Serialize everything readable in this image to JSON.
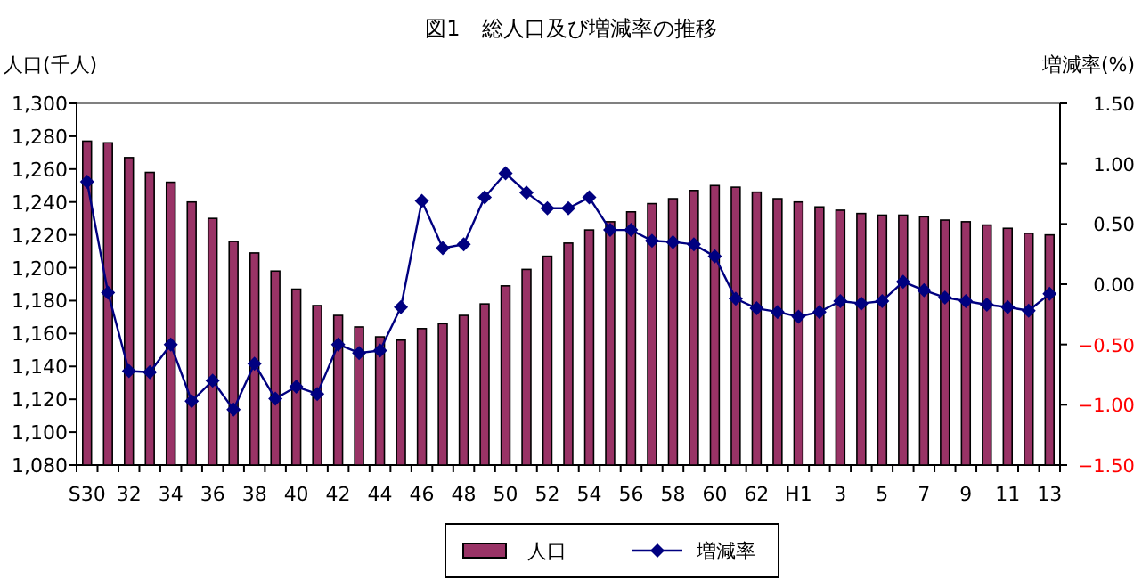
{
  "chart_data": {
    "type": "bar",
    "title": "図1　総人口及び増減率の推移",
    "ylabel": "人口(千人)",
    "y2label": "増減率(%)",
    "categories": [
      "S30",
      null,
      "32",
      null,
      "34",
      null,
      "36",
      null,
      "38",
      null,
      "40",
      null,
      "42",
      null,
      "44",
      null,
      "46",
      null,
      "48",
      null,
      "50",
      null,
      "52",
      null,
      "54",
      null,
      "56",
      null,
      "58",
      null,
      "60",
      null,
      "62",
      null,
      "H1",
      null,
      "3",
      null,
      "5",
      null,
      "7",
      null,
      "9",
      null,
      "11",
      null,
      "13"
    ],
    "series": [
      {
        "name": "人口",
        "color": "#993366",
        "values": [
          1277,
          1276,
          1267,
          1258,
          1252,
          1240,
          1230,
          1216,
          1209,
          1198,
          1187,
          1177,
          1171,
          1164,
          1158,
          1156,
          1163,
          1166,
          1171,
          1178,
          1189,
          1199,
          1207,
          1215,
          1223,
          1228,
          1234,
          1239,
          1242,
          1247,
          1250,
          1249,
          1246,
          1242,
          1240,
          1237,
          1235,
          1233,
          1232,
          1232,
          1231,
          1229,
          1228,
          1226,
          1224,
          1221,
          1220
        ]
      },
      {
        "name": "増減率",
        "type": "line",
        "axis": "y2",
        "color": "#000080",
        "values": [
          0.85,
          -0.07,
          -0.72,
          -0.73,
          -0.5,
          -0.97,
          -0.8,
          -1.04,
          -0.66,
          -0.95,
          -0.85,
          -0.91,
          -0.5,
          -0.57,
          -0.55,
          -0.19,
          0.69,
          0.3,
          0.33,
          0.72,
          0.92,
          0.76,
          0.63,
          0.63,
          0.72,
          0.45,
          0.45,
          0.36,
          0.35,
          0.33,
          0.23,
          -0.12,
          -0.2,
          -0.23,
          -0.27,
          -0.23,
          -0.14,
          -0.16,
          -0.14,
          0.02,
          -0.05,
          -0.11,
          -0.14,
          -0.17,
          -0.19,
          -0.22,
          -0.08
        ]
      }
    ],
    "ylim": [
      1080,
      1300
    ],
    "yticks": [
      {
        "value": 1080,
        "label": "1,080"
      },
      {
        "value": 1100,
        "label": "1,100"
      },
      {
        "value": 1120,
        "label": "1,120"
      },
      {
        "value": 1140,
        "label": "1,140"
      },
      {
        "value": 1160,
        "label": "1,160"
      },
      {
        "value": 1180,
        "label": "1,180"
      },
      {
        "value": 1200,
        "label": "1,200"
      },
      {
        "value": 1220,
        "label": "1,220"
      },
      {
        "value": 1240,
        "label": "1,240"
      },
      {
        "value": 1260,
        "label": "1,260"
      },
      {
        "value": 1280,
        "label": "1,280"
      },
      {
        "value": 1300,
        "label": "1,300"
      }
    ],
    "y2lim": [
      -1.5,
      1.5
    ],
    "y2ticks": [
      {
        "value": -1.5,
        "label": "−1.50"
      },
      {
        "value": -1,
        "label": "−1.00"
      },
      {
        "value": -0.5,
        "label": "−0.50"
      },
      {
        "value": 0,
        "label": "0.00"
      },
      {
        "value": 0.5,
        "label": "0.50"
      },
      {
        "value": 1,
        "label": "1.00"
      },
      {
        "value": 1.5,
        "label": "1.50"
      }
    ],
    "marker": "diamond",
    "line_style": "solid",
    "legend": "bottom",
    "grid": false
  }
}
